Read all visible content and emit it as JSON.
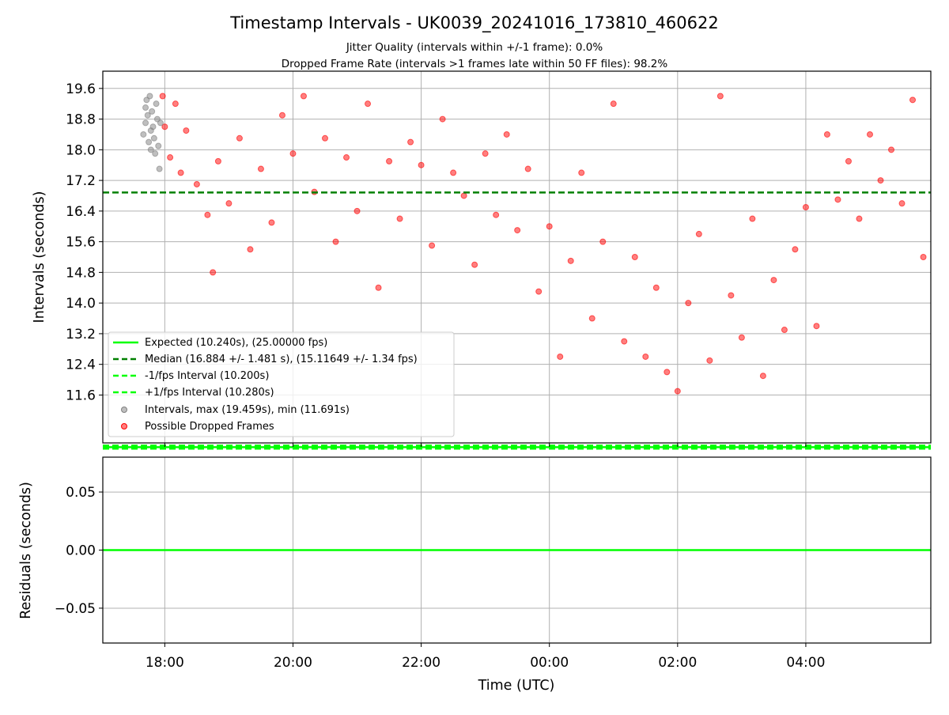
{
  "figure": {
    "title": "Timestamp Intervals - UK0039_20241016_173810_460622",
    "subtitle_1": "Jitter Quality (intervals within +/-1 frame): 0.0%",
    "subtitle_2": "Dropped Frame Rate (intervals >1 frames late within 50 FF files): 98.2%"
  },
  "colors": {
    "dropped": "#ff0000",
    "normal_points": "#808080",
    "expected": "#00ff00",
    "median": "#008000",
    "grid": "#b0b0b0"
  },
  "chart_data": [
    {
      "type": "scatter",
      "ylabel": "Intervals (seconds)",
      "xlim": [
        "17:02",
        "05:57"
      ],
      "ylim": [
        10.35,
        20.05
      ],
      "yticks": [
        "19.6",
        "18.8",
        "18.0",
        "17.2",
        "16.4",
        "15.6",
        "14.8",
        "14.0",
        "13.2",
        "12.4",
        "11.6"
      ],
      "x_ticks": [
        "18:00",
        "20:00",
        "22:00",
        "00:00",
        "02:00",
        "04:00"
      ],
      "grid": true,
      "legend_position": "lower-left",
      "legend": [
        "Expected (10.240s), (25.00000 fps)",
        "Median (16.884 +/- 1.481 s), (15.11649 +/- 1.34 fps)",
        "-1/fps Interval (10.200s)",
        "+1/fps Interval (10.280s)",
        "Intervals, max (19.459s), min (11.691s)",
        "Possible Dropped Frames"
      ],
      "reference_lines": [
        {
          "name": "Expected",
          "y": 10.24,
          "style": "solid"
        },
        {
          "name": "Median",
          "y": 16.884,
          "style": "dashed"
        },
        {
          "name": "-1/fps Interval",
          "y": 10.2,
          "style": "dashed"
        },
        {
          "name": "+1/fps Interval",
          "y": 10.28,
          "style": "dashed"
        }
      ],
      "series": [
        {
          "name": "Intervals, max (19.459s), min (11.691s)",
          "points": [
            [
              "17:40",
              18.4
            ],
            [
              "17:42",
              19.1
            ],
            [
              "17:42",
              18.7
            ],
            [
              "17:43",
              19.3
            ],
            [
              "17:44",
              18.9
            ],
            [
              "17:45",
              18.2
            ],
            [
              "17:46",
              19.4
            ],
            [
              "17:47",
              18.5
            ],
            [
              "17:47",
              18.0
            ],
            [
              "17:48",
              19.0
            ],
            [
              "17:49",
              18.6
            ],
            [
              "17:50",
              18.3
            ],
            [
              "17:51",
              17.9
            ],
            [
              "17:52",
              19.2
            ],
            [
              "17:53",
              18.8
            ],
            [
              "17:54",
              18.1
            ],
            [
              "17:55",
              17.5
            ],
            [
              "17:56",
              18.7
            ]
          ]
        },
        {
          "name": "Possible Dropped Frames",
          "note": "dense cloud; representative band values per time",
          "points": [
            [
              "17:58",
              19.4
            ],
            [
              "18:00",
              18.6
            ],
            [
              "18:05",
              17.8
            ],
            [
              "18:10",
              19.2
            ],
            [
              "18:15",
              17.4
            ],
            [
              "18:20",
              18.5
            ],
            [
              "18:30",
              17.1
            ],
            [
              "18:40",
              16.3
            ],
            [
              "18:45",
              14.8
            ],
            [
              "18:50",
              17.7
            ],
            [
              "19:00",
              16.6
            ],
            [
              "19:10",
              18.3
            ],
            [
              "19:20",
              15.4
            ],
            [
              "19:30",
              17.5
            ],
            [
              "19:40",
              16.1
            ],
            [
              "19:50",
              18.9
            ],
            [
              "20:00",
              17.9
            ],
            [
              "20:10",
              19.4
            ],
            [
              "20:20",
              16.9
            ],
            [
              "20:30",
              18.3
            ],
            [
              "20:40",
              15.6
            ],
            [
              "20:50",
              17.8
            ],
            [
              "21:00",
              16.4
            ],
            [
              "21:10",
              19.2
            ],
            [
              "21:20",
              14.4
            ],
            [
              "21:30",
              17.7
            ],
            [
              "21:40",
              16.2
            ],
            [
              "21:50",
              18.2
            ],
            [
              "22:00",
              17.6
            ],
            [
              "22:10",
              15.5
            ],
            [
              "22:20",
              18.8
            ],
            [
              "22:30",
              17.4
            ],
            [
              "22:40",
              16.8
            ],
            [
              "22:50",
              15.0
            ],
            [
              "23:00",
              17.9
            ],
            [
              "23:10",
              16.3
            ],
            [
              "23:20",
              18.4
            ],
            [
              "23:30",
              15.9
            ],
            [
              "23:40",
              17.5
            ],
            [
              "23:50",
              14.3
            ],
            [
              "00:00",
              16.0
            ],
            [
              "00:10",
              12.6
            ],
            [
              "00:20",
              15.1
            ],
            [
              "00:30",
              17.4
            ],
            [
              "00:40",
              13.6
            ],
            [
              "00:50",
              15.6
            ],
            [
              "01:00",
              19.2
            ],
            [
              "01:10",
              13.0
            ],
            [
              "01:20",
              15.2
            ],
            [
              "01:30",
              12.6
            ],
            [
              "01:40",
              14.4
            ],
            [
              "01:50",
              12.2
            ],
            [
              "02:00",
              11.7
            ],
            [
              "02:10",
              14.0
            ],
            [
              "02:20",
              15.8
            ],
            [
              "02:30",
              12.5
            ],
            [
              "02:40",
              19.4
            ],
            [
              "02:50",
              14.2
            ],
            [
              "03:00",
              13.1
            ],
            [
              "03:10",
              16.2
            ],
            [
              "03:20",
              12.1
            ],
            [
              "03:30",
              14.6
            ],
            [
              "03:40",
              13.3
            ],
            [
              "03:50",
              15.4
            ],
            [
              "04:00",
              16.5
            ],
            [
              "04:10",
              13.4
            ],
            [
              "04:20",
              18.4
            ],
            [
              "04:30",
              16.7
            ],
            [
              "04:40",
              17.7
            ],
            [
              "04:50",
              16.2
            ],
            [
              "05:00",
              18.4
            ],
            [
              "05:10",
              17.2
            ],
            [
              "05:20",
              18.0
            ],
            [
              "05:30",
              16.6
            ],
            [
              "05:40",
              19.3
            ],
            [
              "05:50",
              15.2
            ]
          ]
        }
      ]
    },
    {
      "type": "line",
      "xlabel": "Time (UTC)",
      "ylabel": "Residuals (seconds)",
      "xlim": [
        "17:02",
        "05:57"
      ],
      "ylim": [
        -0.08,
        0.08
      ],
      "yticks": [
        "0.05",
        "0.00",
        "−0.05"
      ],
      "x_ticks": [
        "18:00",
        "20:00",
        "22:00",
        "00:00",
        "02:00",
        "04:00"
      ],
      "grid": true,
      "series": [
        {
          "name": "",
          "points": [
            [
              "17:02",
              0.0
            ],
            [
              "05:57",
              0.0
            ]
          ]
        }
      ]
    }
  ]
}
